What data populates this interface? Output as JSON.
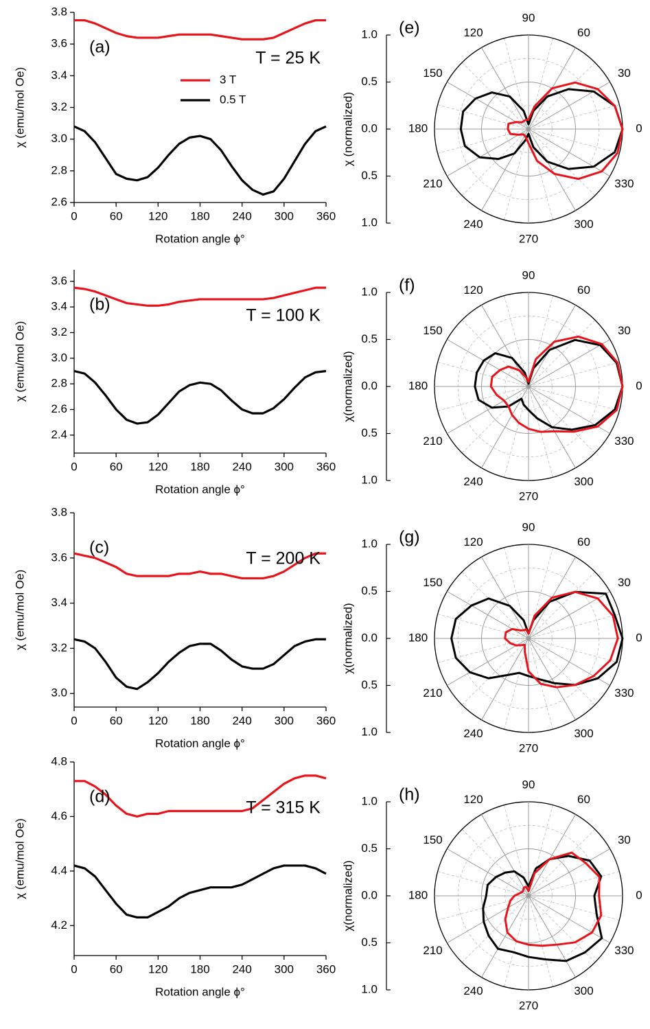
{
  "chart_data": [
    {
      "type": "line",
      "label": "(a)",
      "annotation": "T = 25 K",
      "xlabel": "Rotation angle ϕ°",
      "ylabel": "χ (emu/mol Oe)",
      "x": [
        0,
        15,
        30,
        45,
        60,
        75,
        90,
        105,
        120,
        135,
        150,
        165,
        180,
        195,
        210,
        225,
        240,
        255,
        270,
        285,
        300,
        315,
        330,
        345,
        360
      ],
      "xlim": [
        0,
        360
      ],
      "xticks": [
        0,
        60,
        120,
        180,
        240,
        300,
        360
      ],
      "ylim": [
        2.6,
        3.8
      ],
      "yticks": [
        2.6,
        2.8,
        {
          "value": 3.0,
          "label": "3.0"
        },
        3.2,
        3.4,
        3.6,
        3.8
      ],
      "legend": "upper center",
      "series": [
        {
          "name": "3 T",
          "color": "#e8141b",
          "values": [
            3.75,
            3.75,
            3.73,
            3.7,
            3.67,
            3.65,
            3.64,
            3.64,
            3.64,
            3.65,
            3.66,
            3.66,
            3.66,
            3.66,
            3.65,
            3.64,
            3.63,
            3.63,
            3.63,
            3.64,
            3.67,
            3.7,
            3.73,
            3.75,
            3.75
          ]
        },
        {
          "name": "0.5 T",
          "color": "#000000",
          "values": [
            3.08,
            3.05,
            2.98,
            2.88,
            2.78,
            2.75,
            2.74,
            2.76,
            2.82,
            2.9,
            2.97,
            3.01,
            3.02,
            3.0,
            2.93,
            2.83,
            2.74,
            2.68,
            2.65,
            2.67,
            2.75,
            2.86,
            2.97,
            3.05,
            3.08
          ]
        }
      ]
    },
    {
      "type": "line",
      "label": "(b)",
      "annotation": "T = 100 K",
      "xlabel": "Rotation angle ϕ°",
      "ylabel": "χ (emu/mol Oe)",
      "x": [
        0,
        15,
        30,
        45,
        60,
        75,
        90,
        105,
        120,
        135,
        150,
        165,
        180,
        195,
        210,
        225,
        240,
        255,
        270,
        285,
        300,
        315,
        330,
        345,
        360
      ],
      "xlim": [
        0,
        360
      ],
      "xticks": [
        0,
        60,
        120,
        180,
        240,
        300,
        360
      ],
      "ylim": [
        2.26,
        3.69
      ],
      "yticks": [
        2.4,
        2.6,
        2.8,
        {
          "value": 3.0,
          "label": "3.0"
        },
        3.2,
        3.4,
        3.6
      ],
      "series": [
        {
          "color": "#e8141b",
          "values": [
            3.55,
            3.54,
            3.52,
            3.49,
            3.46,
            3.43,
            3.42,
            3.41,
            3.41,
            3.42,
            3.44,
            3.45,
            3.46,
            3.46,
            3.46,
            3.46,
            3.46,
            3.46,
            3.46,
            3.47,
            3.49,
            3.51,
            3.53,
            3.55,
            3.55
          ]
        },
        {
          "color": "#000000",
          "values": [
            2.9,
            2.88,
            2.81,
            2.71,
            2.6,
            2.52,
            2.49,
            2.5,
            2.56,
            2.65,
            2.74,
            2.79,
            2.81,
            2.8,
            2.75,
            2.67,
            2.6,
            2.57,
            2.57,
            2.61,
            2.68,
            2.77,
            2.85,
            2.89,
            2.9
          ]
        }
      ]
    },
    {
      "type": "line",
      "label": "(c)",
      "annotation": "T = 200 K",
      "xlabel": "Rotation angle ϕ°",
      "ylabel": "χ (emu/mol Oe)",
      "x": [
        0,
        15,
        30,
        45,
        60,
        75,
        90,
        105,
        120,
        135,
        150,
        165,
        180,
        195,
        210,
        225,
        240,
        255,
        270,
        285,
        300,
        315,
        330,
        345,
        360
      ],
      "xlim": [
        0,
        360
      ],
      "xticks": [
        0,
        60,
        120,
        180,
        240,
        300,
        360
      ],
      "ylim": [
        2.94,
        3.8
      ],
      "yticks": [
        {
          "value": 3.0,
          "label": "3.0"
        },
        3.2,
        3.4,
        3.6,
        3.8
      ],
      "series": [
        {
          "color": "#e8141b",
          "values": [
            3.62,
            3.61,
            3.6,
            3.58,
            3.56,
            3.53,
            3.52,
            3.52,
            3.52,
            3.52,
            3.53,
            3.53,
            3.54,
            3.53,
            3.53,
            3.52,
            3.51,
            3.51,
            3.51,
            3.52,
            3.54,
            3.57,
            3.6,
            3.62,
            3.62
          ]
        },
        {
          "color": "#000000",
          "values": [
            3.24,
            3.23,
            3.2,
            3.14,
            3.07,
            3.03,
            3.02,
            3.05,
            3.09,
            3.14,
            3.18,
            3.21,
            3.22,
            3.22,
            3.19,
            3.15,
            3.12,
            3.11,
            3.11,
            3.13,
            3.17,
            3.21,
            3.23,
            3.24,
            3.24
          ]
        }
      ]
    },
    {
      "type": "line",
      "label": "(d)",
      "annotation": "T = 315 K",
      "xlabel": "Rotation angle ϕ°",
      "ylabel": "χ (emu/mol Oe)",
      "x": [
        0,
        15,
        30,
        45,
        60,
        75,
        90,
        105,
        120,
        135,
        150,
        165,
        180,
        195,
        210,
        225,
        240,
        255,
        270,
        285,
        300,
        315,
        330,
        345,
        360
      ],
      "xlim": [
        0,
        360
      ],
      "xticks": [
        0,
        60,
        120,
        180,
        240,
        300,
        360
      ],
      "ylim": [
        4.09,
        4.8
      ],
      "yticks": [
        4.2,
        4.4,
        4.6,
        4.8
      ],
      "series": [
        {
          "color": "#e8141b",
          "values": [
            4.73,
            4.73,
            4.71,
            4.68,
            4.64,
            4.61,
            4.6,
            4.61,
            4.61,
            4.62,
            4.62,
            4.62,
            4.62,
            4.62,
            4.62,
            4.62,
            4.62,
            4.63,
            4.66,
            4.69,
            4.72,
            4.74,
            4.75,
            4.75,
            4.74
          ]
        },
        {
          "color": "#000000",
          "values": [
            4.42,
            4.41,
            4.38,
            4.33,
            4.28,
            4.24,
            4.23,
            4.23,
            4.25,
            4.27,
            4.3,
            4.32,
            4.33,
            4.34,
            4.34,
            4.34,
            4.35,
            4.37,
            4.39,
            4.41,
            4.42,
            4.42,
            4.42,
            4.41,
            4.39
          ]
        }
      ]
    },
    {
      "type": "polar",
      "label": "(e)",
      "ylabel": "χ (normalized)",
      "theta": [
        0,
        15,
        30,
        45,
        60,
        75,
        90,
        105,
        120,
        135,
        150,
        165,
        180,
        195,
        210,
        225,
        240,
        255,
        270,
        285,
        300,
        315,
        330,
        345
      ],
      "thetaticks": [
        0,
        30,
        60,
        90,
        120,
        150,
        180,
        210,
        240,
        270,
        300,
        330
      ],
      "rlim": [
        0,
        1
      ],
      "rticks": [
        {
          "value": 0,
          "label": "0.0"
        },
        0.5,
        {
          "value": 1,
          "label": "1.0"
        }
      ],
      "series": [
        {
          "color": "#000000",
          "values": [
            1.0,
            0.95,
            0.8,
            0.6,
            0.4,
            0.2,
            0.05,
            0.2,
            0.4,
            0.55,
            0.65,
            0.72,
            0.72,
            0.7,
            0.6,
            0.45,
            0.3,
            0.12,
            0.05,
            0.2,
            0.4,
            0.6,
            0.8,
            0.95
          ]
        },
        {
          "color": "#e8141b",
          "values": [
            1.0,
            0.95,
            0.85,
            0.7,
            0.5,
            0.25,
            0.1,
            0.1,
            0.1,
            0.1,
            0.15,
            0.22,
            0.22,
            0.2,
            0.12,
            0.08,
            0.08,
            0.1,
            0.15,
            0.35,
            0.55,
            0.75,
            0.9,
            0.98
          ]
        }
      ]
    },
    {
      "type": "polar",
      "label": "(f)",
      "ylabel": "χ(normalized)",
      "theta": [
        0,
        15,
        30,
        45,
        60,
        75,
        90,
        105,
        120,
        135,
        150,
        165,
        180,
        195,
        210,
        225,
        240,
        255,
        270,
        285,
        300,
        315,
        330,
        345
      ],
      "thetaticks": [
        0,
        30,
        60,
        90,
        120,
        150,
        180,
        210,
        240,
        270,
        300,
        330
      ],
      "rlim": [
        0,
        1
      ],
      "rticks": [
        {
          "value": 0,
          "label": "0.0"
        },
        0.5,
        {
          "value": 1,
          "label": "1.0"
        }
      ],
      "series": [
        {
          "color": "#000000",
          "values": [
            1.0,
            0.97,
            0.88,
            0.7,
            0.45,
            0.2,
            0.03,
            0.15,
            0.35,
            0.5,
            0.55,
            0.57,
            0.57,
            0.55,
            0.45,
            0.3,
            0.15,
            0.2,
            0.25,
            0.35,
            0.5,
            0.65,
            0.82,
            0.95
          ]
        },
        {
          "color": "#e8141b",
          "values": [
            1.0,
            0.98,
            0.9,
            0.75,
            0.55,
            0.3,
            0.05,
            0.1,
            0.2,
            0.3,
            0.35,
            0.4,
            0.4,
            0.35,
            0.3,
            0.3,
            0.35,
            0.4,
            0.45,
            0.5,
            0.55,
            0.68,
            0.85,
            0.97
          ]
        }
      ]
    },
    {
      "type": "polar",
      "label": "(g)",
      "ylabel": "χ(normalized)",
      "theta": [
        0,
        15,
        30,
        45,
        60,
        75,
        90,
        105,
        120,
        135,
        150,
        165,
        180,
        195,
        210,
        225,
        240,
        255,
        270,
        285,
        300,
        315,
        330,
        345
      ],
      "thetaticks": [
        0,
        30,
        60,
        90,
        120,
        150,
        180,
        210,
        240,
        270,
        300,
        330
      ],
      "rlim": [
        0,
        1
      ],
      "rticks": [
        {
          "value": 0,
          "label": "0.0"
        },
        0.5,
        {
          "value": 1,
          "label": "1.0"
        }
      ],
      "series": [
        {
          "color": "#000000",
          "values": [
            1.0,
            0.95,
            0.95,
            0.7,
            0.45,
            0.2,
            0.05,
            0.2,
            0.4,
            0.6,
            0.7,
            0.8,
            0.82,
            0.8,
            0.72,
            0.6,
            0.45,
            0.38,
            0.4,
            0.45,
            0.55,
            0.7,
            0.85,
            0.97
          ]
        },
        {
          "color": "#e8141b",
          "values": [
            0.95,
            0.93,
            0.85,
            0.7,
            0.5,
            0.25,
            0.05,
            0.1,
            0.1,
            0.12,
            0.2,
            0.25,
            0.25,
            0.2,
            0.15,
            0.1,
            0.08,
            0.15,
            0.35,
            0.5,
            0.6,
            0.7,
            0.8,
            0.9
          ]
        }
      ]
    },
    {
      "type": "polar",
      "label": "(h)",
      "ylabel": "χ(normalized)",
      "theta": [
        0,
        15,
        30,
        45,
        60,
        75,
        90,
        105,
        120,
        135,
        150,
        165,
        180,
        195,
        210,
        225,
        240,
        255,
        270,
        285,
        300,
        315,
        330,
        345
      ],
      "thetaticks": [
        0,
        30,
        60,
        90,
        120,
        150,
        180,
        210,
        240,
        270,
        300,
        330
      ],
      "rlim": [
        0,
        1
      ],
      "rticks": [
        {
          "value": 0,
          "label": "0.0"
        },
        0.5,
        {
          "value": 1,
          "label": "1.0"
        }
      ],
      "series": [
        {
          "color": "#000000",
          "values": [
            0.7,
            0.8,
            0.75,
            0.6,
            0.45,
            0.3,
            0.1,
            0.2,
            0.3,
            0.35,
            0.4,
            0.45,
            0.45,
            0.5,
            0.55,
            0.6,
            0.65,
            0.62,
            0.65,
            0.7,
            0.8,
            0.85,
            0.9,
            0.75
          ]
        },
        {
          "color": "#e8141b",
          "values": [
            0.75,
            0.78,
            0.7,
            0.65,
            0.45,
            0.25,
            0.05,
            0.1,
            0.1,
            0.08,
            0.08,
            0.1,
            0.15,
            0.2,
            0.25,
            0.35,
            0.45,
            0.5,
            0.52,
            0.55,
            0.6,
            0.7,
            0.78,
            0.8
          ]
        }
      ]
    }
  ]
}
